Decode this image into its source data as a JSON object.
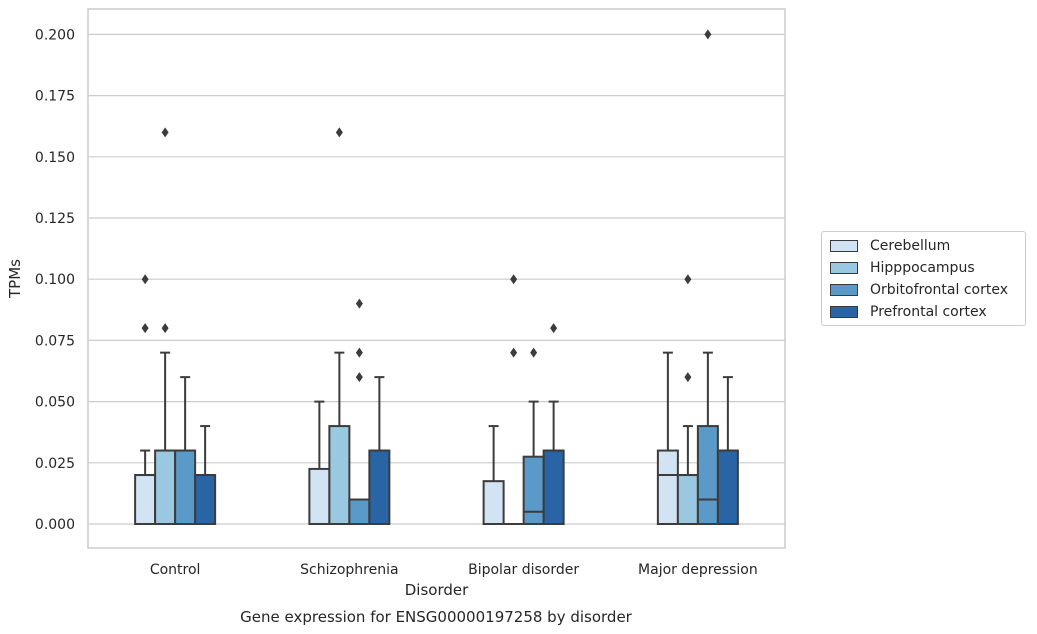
{
  "chart_data": {
    "type": "boxplot",
    "title": "Gene expression for ENSG00000197258 by disorder",
    "xlabel": "Disorder",
    "ylabel": "TPMs",
    "ylim": [
      -0.02,
      0.21
    ],
    "yticks": [
      "0.000",
      "0.025",
      "0.050",
      "0.075",
      "0.100",
      "0.125",
      "0.150",
      "0.175",
      "0.200"
    ],
    "categories": [
      "Control",
      "Schizophrenia",
      "Bipolar disorder",
      "Major depression"
    ],
    "grid": "horizontal",
    "legend_position": "right",
    "series": [
      {
        "name": "Cerebellum",
        "color": "#d2e3f3",
        "boxes": [
          {
            "whisker_low": 0.0,
            "q1": 0.0,
            "median": 0.02,
            "q3": 0.02,
            "whisker_high": 0.03,
            "outliers": [
              0.08,
              0.1
            ]
          },
          {
            "whisker_low": 0.0,
            "q1": 0.0,
            "median": 0.0,
            "q3": 0.0225,
            "whisker_high": 0.05,
            "outliers": []
          },
          {
            "whisker_low": 0.0,
            "q1": 0.0,
            "median": 0.0,
            "q3": 0.0175,
            "whisker_high": 0.04,
            "outliers": []
          },
          {
            "whisker_low": 0.0,
            "q1": 0.0,
            "median": 0.02,
            "q3": 0.03,
            "whisker_high": 0.07,
            "outliers": []
          }
        ]
      },
      {
        "name": "Hipppocampus",
        "color": "#9ac8e0",
        "boxes": [
          {
            "whisker_low": 0.0,
            "q1": 0.0,
            "median": 0.03,
            "q3": 0.03,
            "whisker_high": 0.07,
            "outliers": [
              0.08,
              0.16
            ]
          },
          {
            "whisker_low": 0.0,
            "q1": 0.0,
            "median": 0.0,
            "q3": 0.04,
            "whisker_high": 0.07,
            "outliers": [
              0.16
            ]
          },
          {
            "whisker_low": 0.0,
            "q1": 0.0,
            "median": 0.0,
            "q3": 0.0,
            "whisker_high": 0.0,
            "outliers": [
              0.07,
              0.1
            ]
          },
          {
            "whisker_low": 0.0,
            "q1": 0.0,
            "median": 0.02,
            "q3": 0.02,
            "whisker_high": 0.04,
            "outliers": [
              0.06,
              0.1
            ]
          }
        ]
      },
      {
        "name": "Orbitofrontal cortex",
        "color": "#5a9ac8",
        "boxes": [
          {
            "whisker_low": 0.0,
            "q1": 0.0,
            "median": 0.03,
            "q3": 0.03,
            "whisker_high": 0.06,
            "outliers": []
          },
          {
            "whisker_low": 0.0,
            "q1": 0.0,
            "median": 0.0,
            "q3": 0.01,
            "whisker_high": 0.01,
            "outliers": [
              0.06,
              0.07,
              0.09
            ]
          },
          {
            "whisker_low": 0.0,
            "q1": 0.0,
            "median": 0.005,
            "q3": 0.0275,
            "whisker_high": 0.05,
            "outliers": [
              0.07
            ]
          },
          {
            "whisker_low": 0.0,
            "q1": 0.0,
            "median": 0.01,
            "q3": 0.04,
            "whisker_high": 0.07,
            "outliers": [
              0.2
            ]
          }
        ]
      },
      {
        "name": "Prefrontal cortex",
        "color": "#2964a4",
        "boxes": [
          {
            "whisker_low": 0.0,
            "q1": 0.0,
            "median": 0.02,
            "q3": 0.02,
            "whisker_high": 0.04,
            "outliers": []
          },
          {
            "whisker_low": 0.0,
            "q1": 0.0,
            "median": 0.03,
            "q3": 0.03,
            "whisker_high": 0.06,
            "outliers": []
          },
          {
            "whisker_low": 0.0,
            "q1": 0.0,
            "median": 0.03,
            "q3": 0.03,
            "whisker_high": 0.05,
            "outliers": [
              0.08
            ]
          },
          {
            "whisker_low": 0.0,
            "q1": 0.0,
            "median": 0.03,
            "q3": 0.03,
            "whisker_high": 0.06,
            "outliers": []
          }
        ]
      }
    ]
  }
}
